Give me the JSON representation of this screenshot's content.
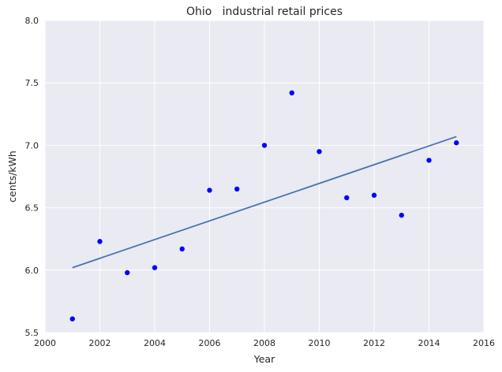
{
  "chart_data": {
    "type": "scatter",
    "title": "Ohio   industrial retail prices",
    "xlabel": "Year",
    "ylabel": "cents/kWh",
    "xlim": [
      2000,
      2016
    ],
    "ylim": [
      5.5,
      8.0
    ],
    "xticks": [
      2000,
      2002,
      2004,
      2006,
      2008,
      2010,
      2012,
      2014,
      2016
    ],
    "yticks": [
      5.5,
      6.0,
      6.5,
      7.0,
      7.5,
      8.0
    ],
    "ytick_labels": [
      "5.5",
      "6.0",
      "6.5",
      "7.0",
      "7.5",
      "8.0"
    ],
    "grid": true,
    "series": [
      {
        "kind": "scatter",
        "color": "#0000ff",
        "x": [
          2001,
          2002,
          2003,
          2004,
          2005,
          2006,
          2007,
          2008,
          2009,
          2010,
          2011,
          2012,
          2013,
          2014,
          2015
        ],
        "y": [
          5.61,
          6.23,
          5.98,
          6.02,
          6.17,
          6.64,
          6.65,
          7.0,
          7.42,
          6.95,
          6.58,
          6.6,
          6.44,
          6.88,
          7.02
        ]
      },
      {
        "kind": "line",
        "color": "#4c72b0",
        "x": [
          2001,
          2015
        ],
        "y": [
          6.02,
          7.07
        ]
      }
    ]
  }
}
